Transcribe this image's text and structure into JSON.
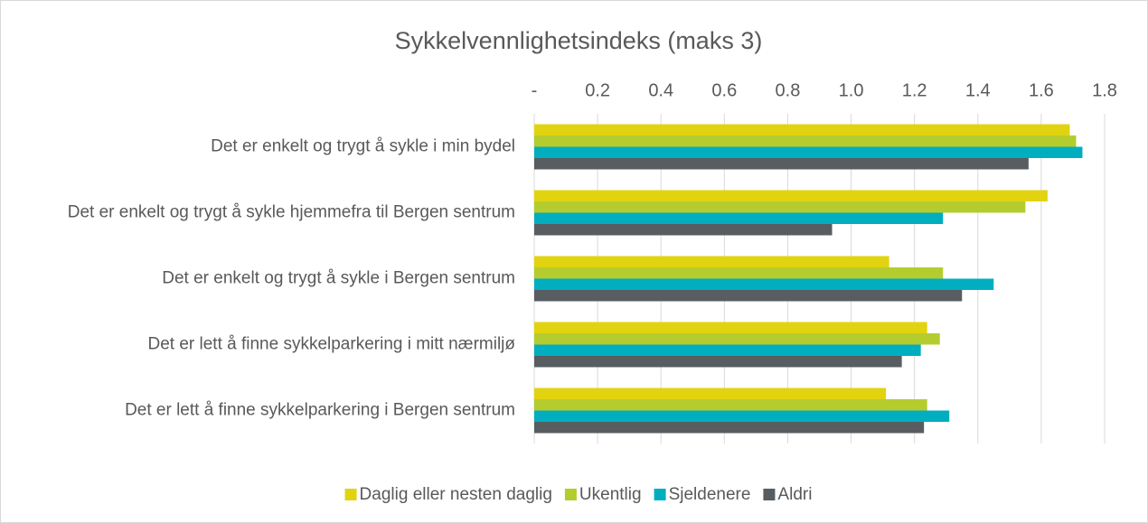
{
  "chart_data": {
    "type": "hbar",
    "title": "Sykkelvennlighetsindeks (maks 3)",
    "categories": [
      "Det er enkelt og trygt å sykle i min bydel",
      "Det er enkelt og trygt å sykle hjemmefra til Bergen sentrum",
      "Det er enkelt og trygt å sykle i Bergen sentrum",
      "Det er lett å finne sykkelparkering i mitt nærmiljø",
      "Det er lett å finne sykkelparkering i Bergen sentrum"
    ],
    "series": [
      {
        "name": "Daglig eller nesten daglig",
        "color": "#e2d310",
        "values": [
          1.69,
          1.62,
          1.12,
          1.24,
          1.11
        ]
      },
      {
        "name": "Ukentlig",
        "color": "#b5cc2e",
        "values": [
          1.71,
          1.55,
          1.29,
          1.28,
          1.24
        ]
      },
      {
        "name": "Sjeldenere",
        "color": "#00aec0",
        "values": [
          1.73,
          1.29,
          1.45,
          1.22,
          1.31
        ]
      },
      {
        "name": "Aldri",
        "color": "#575d61",
        "values": [
          1.56,
          0.94,
          1.35,
          1.16,
          1.23
        ]
      }
    ],
    "xlim": [
      0,
      1.8
    ],
    "xticks": [
      {
        "value": 0,
        "label": "-"
      },
      0.2,
      0.4,
      0.6,
      0.8,
      {
        "value": 1,
        "label": "1.0"
      },
      1.2,
      1.4,
      1.6,
      1.8
    ],
    "grid": true,
    "legend": "bottom"
  }
}
